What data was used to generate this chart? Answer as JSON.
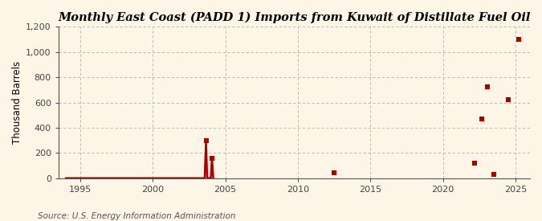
{
  "title": "Monthly East Coast (PADD 1) Imports from Kuwait of Distillate Fuel Oil",
  "ylabel": "Thousand Barrels",
  "source": "Source: U.S. Energy Information Administration",
  "background_color": "#fdf5e6",
  "data_color": "#aa0000",
  "xlim": [
    1993.5,
    2026
  ],
  "ylim": [
    0,
    1200
  ],
  "yticks": [
    0,
    200,
    400,
    600,
    800,
    1000,
    1200
  ],
  "ytick_labels": [
    "0",
    "200",
    "400",
    "600",
    "800",
    "1,000",
    "1,200"
  ],
  "xticks": [
    1995,
    2000,
    2005,
    2010,
    2015,
    2020,
    2025
  ],
  "line_x": [
    1994.0,
    1994.08,
    1994.17,
    1994.25,
    1994.33,
    1994.42,
    1994.5,
    1994.58,
    1994.67,
    1994.75,
    1994.83,
    1994.92,
    1995.0,
    1995.08,
    1995.17,
    1995.25,
    1995.33,
    1995.42,
    1995.5,
    1995.58,
    1995.67,
    1995.75,
    1995.83,
    1995.92,
    1996.0,
    1996.08,
    1996.17,
    1996.25,
    1996.33,
    1996.42,
    1996.5,
    1996.58,
    1996.67,
    1996.75,
    1996.83,
    1996.92,
    1997.0,
    1997.08,
    1997.17,
    1997.25,
    1997.33,
    1997.42,
    1997.5,
    1997.58,
    1997.67,
    1997.75,
    1997.83,
    1997.92,
    1998.0,
    1998.08,
    1998.17,
    1998.25,
    1998.33,
    1998.42,
    1998.5,
    1998.58,
    1998.67,
    1998.75,
    1998.83,
    1998.92,
    1999.0,
    1999.08,
    1999.17,
    1999.25,
    1999.33,
    1999.42,
    1999.5,
    1999.58,
    1999.67,
    1999.75,
    1999.83,
    1999.92,
    2000.0,
    2000.08,
    2000.17,
    2000.25,
    2000.33,
    2000.42,
    2000.5,
    2000.58,
    2000.67,
    2000.75,
    2000.83,
    2000.92,
    2001.0,
    2001.08,
    2001.17,
    2001.25,
    2001.33,
    2001.42,
    2001.5,
    2001.58,
    2001.67,
    2001.75,
    2001.83,
    2001.92,
    2002.0,
    2002.08,
    2002.17,
    2002.25,
    2002.33,
    2002.42,
    2002.5,
    2002.58,
    2002.67,
    2002.75,
    2002.83,
    2002.92,
    2003.0,
    2003.08,
    2003.17,
    2003.25,
    2003.33,
    2003.42,
    2003.5,
    2003.58,
    2003.67,
    2003.75,
    2003.83,
    2003.92,
    2004.0,
    2004.08,
    2004.17
  ],
  "line_y": [
    0,
    0,
    0,
    0,
    0,
    0,
    0,
    0,
    0,
    0,
    0,
    0,
    0,
    0,
    0,
    0,
    0,
    0,
    0,
    0,
    0,
    0,
    0,
    0,
    0,
    0,
    0,
    0,
    0,
    0,
    0,
    0,
    0,
    0,
    0,
    0,
    0,
    0,
    0,
    0,
    0,
    0,
    0,
    0,
    0,
    0,
    0,
    0,
    0,
    0,
    0,
    0,
    0,
    0,
    0,
    0,
    0,
    0,
    0,
    0,
    0,
    0,
    0,
    0,
    0,
    0,
    0,
    0,
    0,
    0,
    0,
    0,
    0,
    0,
    0,
    0,
    0,
    0,
    0,
    0,
    0,
    0,
    0,
    0,
    0,
    0,
    0,
    0,
    0,
    0,
    0,
    0,
    0,
    0,
    0,
    0,
    0,
    0,
    0,
    0,
    0,
    0,
    0,
    0,
    0,
    0,
    0,
    0,
    0,
    0,
    0,
    0,
    0,
    0,
    0,
    0,
    295,
    0,
    0,
    0,
    0,
    160,
    0
  ],
  "scatter_x": [
    2003.67,
    2004.08,
    2012.5,
    2022.17,
    2022.67,
    2023.08,
    2023.5,
    2025.25
  ],
  "scatter_y": [
    295,
    160,
    40,
    120,
    470,
    725,
    30,
    1100
  ],
  "scatter_x2": [
    2024.5
  ],
  "scatter_y2": [
    625
  ],
  "marker_size": 4,
  "title_fontsize": 10.5,
  "axis_fontsize": 8.5,
  "tick_fontsize": 8,
  "source_fontsize": 7.5
}
